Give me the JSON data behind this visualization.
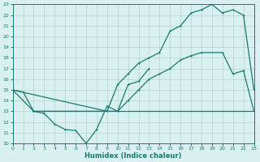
{
  "line1_x": [
    0,
    1,
    2,
    3,
    4,
    5,
    6,
    7,
    8,
    9,
    10,
    11,
    12,
    13
  ],
  "line1_y": [
    15,
    14.8,
    13,
    12.8,
    11.8,
    11.3,
    11.2,
    10,
    11.3,
    13.5,
    13,
    15.5,
    15.8,
    17
  ],
  "line2_x": [
    0,
    2,
    3,
    10,
    11,
    12,
    13,
    14,
    15,
    16,
    17,
    18,
    20,
    21,
    22,
    23
  ],
  "line2_y": [
    15,
    13,
    13,
    13,
    14,
    15,
    16,
    16.5,
    17,
    17.8,
    18.2,
    18.5,
    18.5,
    16.5,
    16.8,
    13
  ],
  "line3_x": [
    0,
    9,
    10,
    11,
    12,
    13,
    14,
    15,
    16,
    17,
    18,
    19,
    20,
    21,
    22,
    23
  ],
  "line3_y": [
    15,
    13,
    15.5,
    16.5,
    17.5,
    18,
    18.5,
    20.5,
    21,
    22.2,
    22.5,
    23,
    22.2,
    22.5,
    22,
    15
  ],
  "line4_x": [
    2,
    3,
    23
  ],
  "line4_y": [
    13,
    13,
    13
  ],
  "xlim": [
    0,
    23
  ],
  "ylim": [
    10,
    23
  ],
  "xticks": [
    0,
    1,
    2,
    3,
    4,
    5,
    6,
    7,
    8,
    9,
    10,
    11,
    12,
    13,
    14,
    15,
    16,
    17,
    18,
    19,
    20,
    21,
    22,
    23
  ],
  "yticks": [
    10,
    11,
    12,
    13,
    14,
    15,
    16,
    17,
    18,
    19,
    20,
    21,
    22,
    23
  ],
  "xlabel": "Humidex (Indice chaleur)",
  "line_color": "#1a7a6e",
  "bg_color": "#d8f0ef",
  "grid_color": "#a8ccc9"
}
